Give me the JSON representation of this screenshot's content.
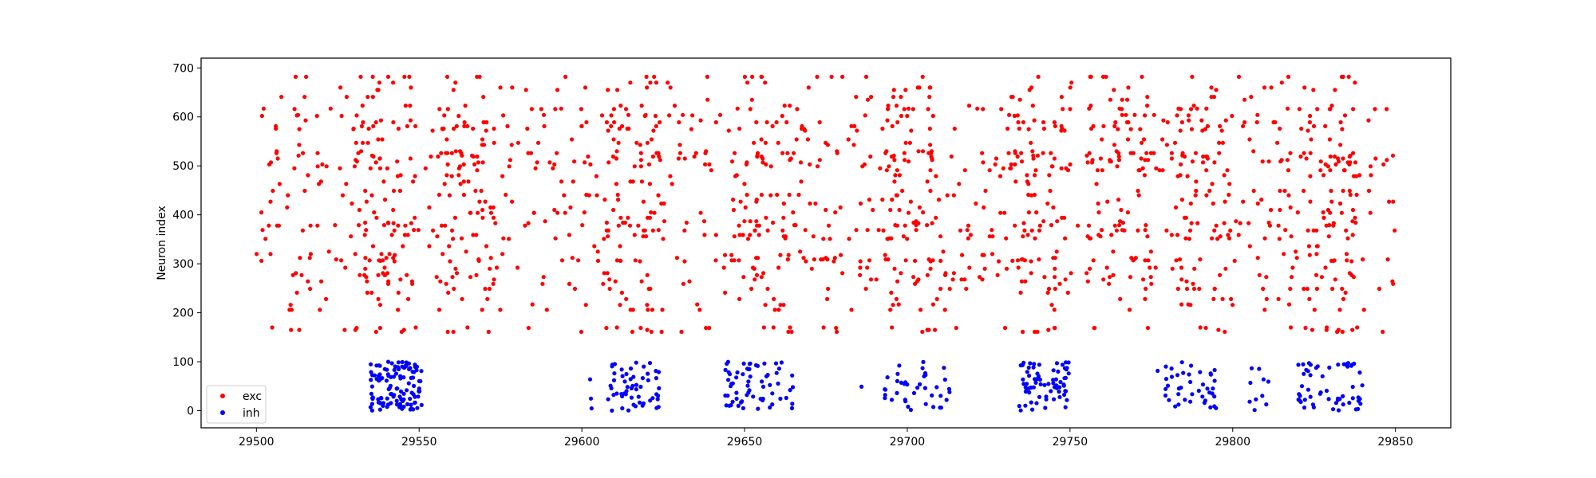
{
  "chart_data": {
    "type": "scatter",
    "title": "",
    "xlabel": "",
    "ylabel": "Neuron index",
    "xlim": [
      29483,
      29867
    ],
    "ylim": [
      -35,
      720
    ],
    "xticks": [
      29500,
      29550,
      29600,
      29650,
      29700,
      29750,
      29800,
      29850
    ],
    "yticks": [
      0,
      100,
      200,
      300,
      400,
      500,
      600,
      700
    ],
    "grid": false,
    "legend_position": "lower-left",
    "series": [
      {
        "name": "exc",
        "color": "#ff0000",
        "x_range": [
          29500,
          29850
        ],
        "y_range": [
          158,
          684
        ],
        "bursts": [
          29540,
          29565,
          29615,
          29655,
          29700,
          29740,
          29765,
          29790,
          29830
        ],
        "point_count": 1500
      },
      {
        "name": "inh",
        "color": "#0000ff",
        "x_range": [
          29535,
          29840
        ],
        "y_range": [
          0,
          100
        ],
        "clusters": [
          {
            "x_range": [
              29535,
              29551
            ],
            "count": 120
          },
          {
            "x_range": [
              29600,
              29603
            ],
            "count": 3
          },
          {
            "x_range": [
              29608,
              29624
            ],
            "count": 55
          },
          {
            "x_range": [
              29644,
              29665
            ],
            "count": 65
          },
          {
            "x_range": [
              29685,
              29686
            ],
            "count": 1
          },
          {
            "x_range": [
              29693,
              29714
            ],
            "count": 40
          },
          {
            "x_range": [
              29733,
              29750
            ],
            "count": 70
          },
          {
            "x_range": [
              29776,
              29777
            ],
            "count": 1
          },
          {
            "x_range": [
              29779,
              29795
            ],
            "count": 40
          },
          {
            "x_range": [
              29805,
              29812
            ],
            "count": 10
          },
          {
            "x_range": [
              29820,
              29840
            ],
            "count": 55
          }
        ]
      }
    ]
  }
}
